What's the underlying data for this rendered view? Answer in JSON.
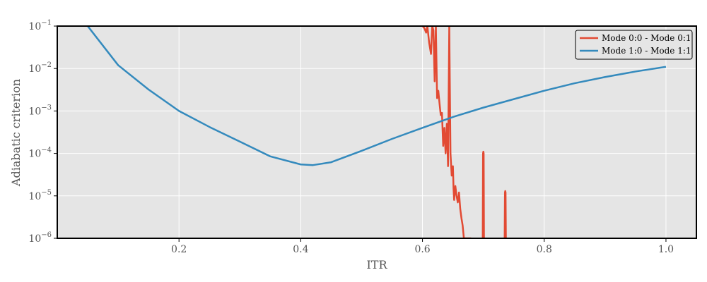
{
  "chart_data": {
    "type": "line",
    "title": "",
    "xlabel": "ITR",
    "ylabel": "Adiabatic criterion",
    "xlim": [
      0.0,
      1.05
    ],
    "ylim": [
      1e-06,
      0.1
    ],
    "yscale": "log",
    "grid": true,
    "legend_position": "top-right",
    "xticks": [
      {
        "value": 0.2,
        "label": "0.2"
      },
      {
        "value": 0.4,
        "label": "0.4"
      },
      {
        "value": 0.6,
        "label": "0.6"
      },
      {
        "value": 0.8,
        "label": "0.8"
      },
      {
        "value": 1.0,
        "label": "1.0"
      }
    ],
    "yticks": [
      {
        "value": 1e-06,
        "base": "10",
        "exp": "−6"
      },
      {
        "value": 1e-05,
        "base": "10",
        "exp": "−5"
      },
      {
        "value": 0.0001,
        "base": "10",
        "exp": "−4"
      },
      {
        "value": 0.001,
        "base": "10",
        "exp": "−3"
      },
      {
        "value": 0.01,
        "base": "10",
        "exp": "−2"
      },
      {
        "value": 0.1,
        "base": "10",
        "exp": "−1"
      }
    ],
    "colors": {
      "background": "#e5e5e5",
      "grid": "#ffffff"
    },
    "series": [
      {
        "name": "Mode 0:0 - Mode 0:1",
        "color": "#e24a33",
        "x": [
          0.6,
          0.603,
          0.606,
          0.608,
          0.611,
          0.614,
          0.616,
          0.618,
          0.62,
          0.622,
          0.624,
          0.626,
          0.628,
          0.63,
          0.632,
          0.634,
          0.636,
          0.638,
          0.64,
          0.642,
          0.644,
          0.646,
          0.648,
          0.65,
          0.651,
          0.652,
          0.654,
          0.656,
          0.658,
          0.66,
          0.662,
          0.664,
          0.666,
          0.668,
          0.67,
          0.672,
          0.674,
          0.676,
          0.678,
          0.68
        ],
        "y": [
          0.1,
          0.09,
          0.07,
          0.1,
          0.04,
          0.022,
          0.1,
          0.08,
          0.005,
          0.1,
          0.002,
          0.003,
          0.0015,
          0.0008,
          0.0009,
          0.00015,
          0.0004,
          0.0001,
          0.0005,
          5e-05,
          0.1,
          0.0001,
          3e-05,
          5e-05,
          1.5e-05,
          8e-06,
          1.7e-05,
          1e-05,
          7e-06,
          1.2e-05,
          5e-06,
          3e-06,
          2e-06,
          1e-06,
          1e-06,
          1e-06,
          1e-06,
          1e-06,
          1e-06,
          1e-06
        ]
      },
      {
        "name": "Mode 1:0 - Mode 1:1",
        "color": "#348abd",
        "x": [
          0.05,
          0.1,
          0.15,
          0.2,
          0.25,
          0.3,
          0.35,
          0.4,
          0.42,
          0.45,
          0.5,
          0.55,
          0.6,
          0.65,
          0.7,
          0.75,
          0.8,
          0.85,
          0.9,
          0.95,
          1.0
        ],
        "y": [
          0.1,
          0.012,
          0.0032,
          0.001,
          0.00042,
          0.00019,
          8.5e-05,
          5.5e-05,
          5.3e-05,
          6.2e-05,
          0.000115,
          0.00022,
          0.0004,
          0.00072,
          0.0012,
          0.0019,
          0.003,
          0.0045,
          0.0063,
          0.0085,
          0.011
        ]
      },
      {
        "name": "",
        "color": "#e24a33",
        "x": [
          0.699,
          0.6995,
          0.7,
          0.7005,
          0.701
        ],
        "y": [
          1e-06,
          0.0001,
          0.00011,
          0.0001,
          1e-06
        ]
      },
      {
        "name": "",
        "color": "#e24a33",
        "x": [
          0.735,
          0.7355,
          0.736,
          0.7365,
          0.737
        ],
        "y": [
          1e-06,
          1.2e-05,
          1.3e-05,
          1.2e-05,
          1e-06
        ]
      }
    ]
  }
}
